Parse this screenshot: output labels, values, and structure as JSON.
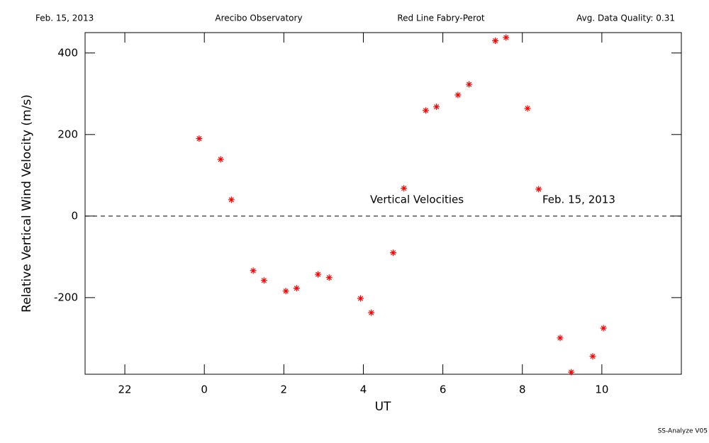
{
  "chart_data": {
    "type": "scatter",
    "header": [
      "Feb. 15, 2013",
      "Arecibo Observatory",
      "Red Line Fabry-Perot",
      "Avg. Data Quality: 0.31"
    ],
    "xlabel": "UT",
    "ylabel": "Relative Vertical Wind Velocity (m/s)",
    "annotations": [
      "Vertical Velocities",
      "Feb. 15, 2013"
    ],
    "footer": "SS-Analyze V05",
    "color": "#ff0000",
    "x": [
      -0.13,
      0.41,
      0.68,
      1.23,
      1.5,
      2.05,
      2.32,
      2.86,
      3.14,
      3.93,
      4.2,
      4.75,
      5.02,
      5.57,
      5.84,
      6.38,
      6.66,
      7.32,
      7.59,
      8.13,
      8.41,
      8.95,
      9.23,
      9.77,
      10.04
    ],
    "values": [
      190,
      139,
      40,
      -134,
      -158,
      -184,
      -177,
      -143,
      -151,
      -202,
      -237,
      -90,
      68,
      259,
      268,
      297,
      323,
      430,
      438,
      264,
      66,
      -299,
      -383,
      -344,
      -275
    ],
    "xlim": [
      -3,
      12
    ],
    "xticks": [
      {
        "value": -2,
        "label": "22"
      },
      0,
      2,
      4,
      6,
      8,
      10
    ],
    "ylim": [
      -388,
      450
    ],
    "yticks": [
      -200,
      0,
      200,
      400
    ],
    "hline": 0
  }
}
